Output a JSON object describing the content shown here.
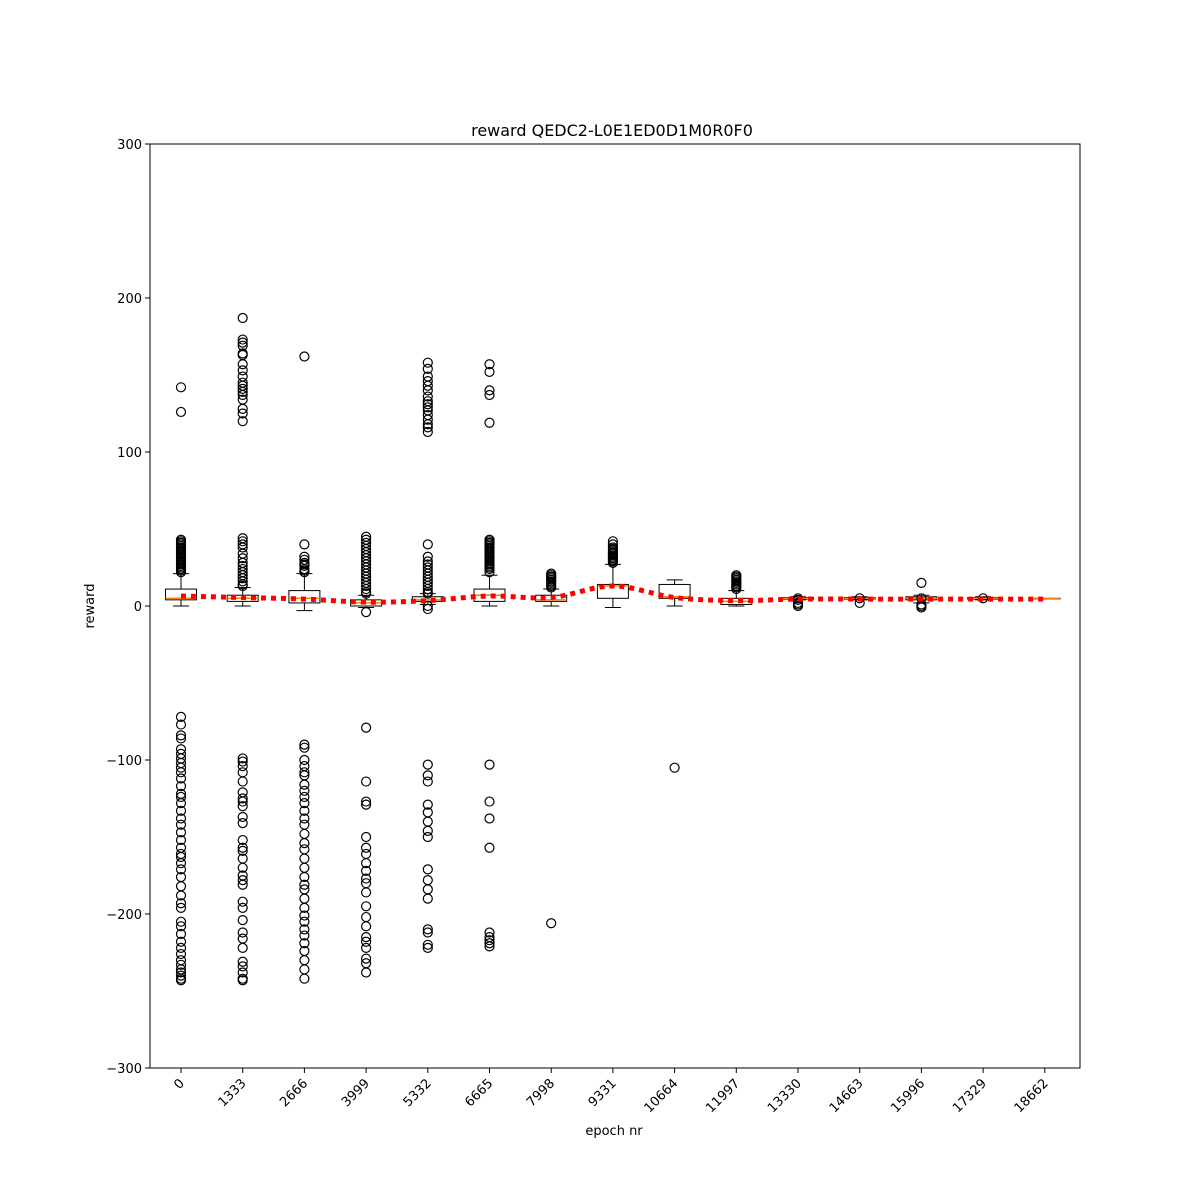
{
  "chart_data": {
    "type": "box",
    "title": "reward QEDC2-L0E1ED0D1M0R0F0",
    "xlabel": "epoch nr",
    "ylabel": "reward",
    "ylim": [
      -300,
      300
    ],
    "yticks": [
      -300,
      -200,
      -100,
      0,
      100,
      200,
      300
    ],
    "ytick_labels": [
      "−300",
      "−200",
      "−100",
      "0",
      "100",
      "200",
      "300"
    ],
    "grid": false,
    "colors": {
      "box": "#000000",
      "median": "#ff7f0e",
      "mean_line": "#ff0000"
    },
    "categories": [
      "0",
      "1333",
      "2666",
      "3999",
      "5332",
      "6665",
      "7998",
      "9331",
      "10664",
      "11997",
      "13330",
      "14663",
      "15996",
      "17329",
      "18662"
    ],
    "boxes": [
      {
        "whisker_low": 0,
        "q1": 4,
        "median": 5,
        "q3": 11,
        "whisker_high": 21
      },
      {
        "whisker_low": 0,
        "q1": 3,
        "median": 5,
        "q3": 7,
        "whisker_high": 12
      },
      {
        "whisker_low": -3,
        "q1": 2,
        "median": 5,
        "q3": 10,
        "whisker_high": 21
      },
      {
        "whisker_low": -1,
        "q1": 0,
        "median": 2,
        "q3": 4,
        "whisker_high": 7
      },
      {
        "whisker_low": 1,
        "q1": 3,
        "median": 4,
        "q3": 6,
        "whisker_high": 8
      },
      {
        "whisker_low": 0,
        "q1": 3,
        "median": 7,
        "q3": 11,
        "whisker_high": 20
      },
      {
        "whisker_low": 0,
        "q1": 3,
        "median": 4,
        "q3": 7,
        "whisker_high": 11
      },
      {
        "whisker_low": -1,
        "q1": 5,
        "median": 13,
        "q3": 14,
        "whisker_high": 27
      },
      {
        "whisker_low": 0,
        "q1": 5,
        "median": 6,
        "q3": 14,
        "whisker_high": 17
      },
      {
        "whisker_low": 0,
        "q1": 1,
        "median": 3,
        "q3": 5,
        "whisker_high": 10
      },
      {
        "whisker_low": 4,
        "q1": 4.5,
        "median": 5,
        "q3": 5.5,
        "whisker_high": 6
      },
      {
        "whisker_low": 4,
        "q1": 4.5,
        "median": 5,
        "q3": 5.5,
        "whisker_high": 6
      },
      {
        "whisker_low": 2,
        "q1": 4,
        "median": 5,
        "q3": 6,
        "whisker_high": 7
      },
      {
        "whisker_low": 4,
        "q1": 4.5,
        "median": 5,
        "q3": 5.5,
        "whisker_high": 6
      },
      {
        "whisker_low": 5,
        "q1": 5,
        "median": 5,
        "q3": 5,
        "whisker_high": 5
      }
    ],
    "outliers": [
      [
        142,
        126,
        43,
        42,
        41,
        40,
        39,
        38,
        37,
        36,
        35,
        34,
        33,
        32,
        31,
        30,
        29,
        28,
        27,
        26,
        25,
        24,
        23,
        22,
        -72,
        -77,
        -84,
        -86,
        -93,
        -96,
        -99,
        -102,
        -105,
        -108,
        -112,
        -117,
        -122,
        -124,
        -128,
        -133,
        -138,
        -142,
        -147,
        -152,
        -157,
        -161,
        -163,
        -167,
        -171,
        -176,
        -182,
        -188,
        -193,
        -196,
        -205,
        -208,
        -213,
        -218,
        -222,
        -226,
        -230,
        -233,
        -236,
        -238,
        -240,
        -242,
        -243
      ],
      [
        187,
        173,
        171,
        169,
        164,
        163,
        157,
        153,
        149,
        145,
        143,
        141,
        139,
        137,
        134,
        128,
        125,
        120,
        44,
        42,
        40,
        38,
        34,
        31,
        28,
        26,
        24,
        22,
        20,
        18,
        16,
        14,
        13,
        -99,
        -101,
        -104,
        -108,
        -114,
        -121,
        -125,
        -127,
        -130,
        -137,
        -141,
        -152,
        -157,
        -159,
        -164,
        -170,
        -175,
        -178,
        -181,
        -192,
        -196,
        -204,
        -212,
        -216,
        -222,
        -231,
        -234,
        -238,
        -242,
        -243
      ],
      [
        162,
        40,
        32,
        30,
        28,
        27,
        26,
        24,
        23,
        22,
        -90,
        -92,
        -100,
        -104,
        -108,
        -110,
        -116,
        -120,
        -124,
        -128,
        -133,
        -138,
        -142,
        -148,
        -154,
        -158,
        -164,
        -170,
        -176,
        -181,
        -184,
        -190,
        -196,
        -201,
        -205,
        -210,
        -214,
        -219,
        -224,
        -230,
        -236,
        -242
      ],
      [
        45,
        43,
        41,
        39,
        37,
        35,
        33,
        31,
        29,
        27,
        25,
        23,
        21,
        19,
        17,
        15,
        13,
        11,
        9,
        8,
        -4,
        -79,
        -114,
        -127,
        -129,
        -150,
        -157,
        -161,
        -167,
        -172,
        -177,
        -180,
        -186,
        -195,
        -202,
        -208,
        -215,
        -218,
        -222,
        -229,
        -232,
        -238
      ],
      [
        158,
        154,
        149,
        146,
        143,
        140,
        136,
        133,
        131,
        129,
        127,
        124,
        121,
        118,
        116,
        113,
        40,
        32,
        29,
        27,
        25,
        23,
        21,
        19,
        17,
        15,
        13,
        11,
        9,
        8,
        0,
        -2,
        -103,
        -110,
        -114,
        -129,
        -134,
        -140,
        -146,
        -150,
        -171,
        -178,
        -184,
        -190,
        -210,
        -212,
        -220,
        -222
      ],
      [
        157,
        152,
        140,
        137,
        119,
        43,
        42,
        41,
        40,
        39,
        38,
        37,
        36,
        35,
        34,
        33,
        32,
        31,
        30,
        29,
        28,
        27,
        26,
        25,
        24,
        22,
        -103,
        -127,
        -138,
        -157,
        -212,
        -215,
        -217,
        -219,
        -221
      ],
      [
        21,
        20,
        19,
        18,
        17,
        16,
        15,
        14,
        13,
        12,
        -206
      ],
      [
        42,
        40,
        38,
        37,
        36,
        35,
        34,
        33,
        32,
        31,
        30,
        29,
        28
      ],
      [
        -105
      ],
      [
        20,
        19,
        18,
        17,
        16,
        15,
        14,
        13,
        12,
        11
      ],
      [
        5,
        4,
        2,
        1,
        0
      ],
      [
        5,
        2
      ],
      [
        15,
        5,
        1,
        0,
        -1
      ],
      [
        5
      ],
      []
    ],
    "mean_line": [
      6.5,
      5.5,
      4.5,
      2.5,
      3.5,
      6.5,
      5.5,
      13,
      5.5,
      3.5,
      4.5,
      4.5,
      4.5,
      4.5,
      4.5
    ]
  }
}
